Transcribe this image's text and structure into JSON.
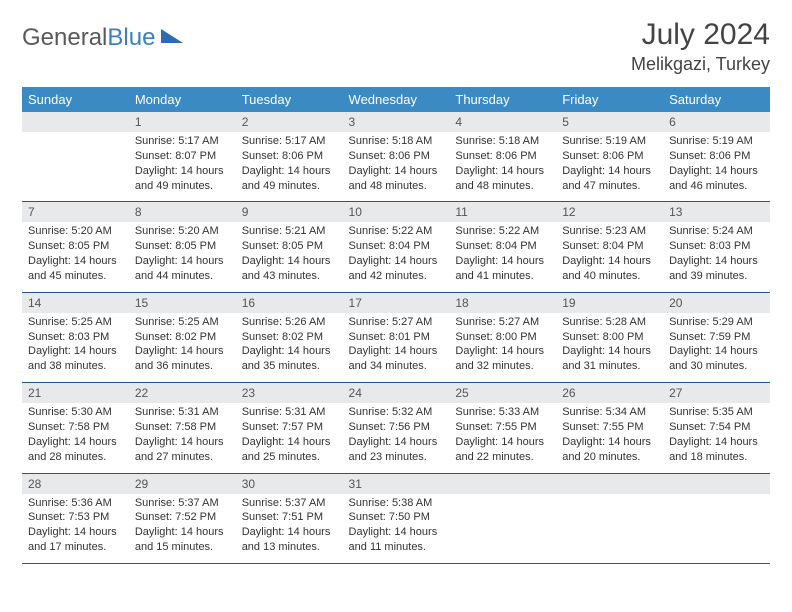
{
  "logo": {
    "part1": "General",
    "part2": "Blue"
  },
  "title": "July 2024",
  "location": "Melikgazi, Turkey",
  "weekdays": [
    "Sunday",
    "Monday",
    "Tuesday",
    "Wednesday",
    "Thursday",
    "Friday",
    "Saturday"
  ],
  "colors": {
    "header_bg": "#3b8ac4",
    "row_border": "#1f5a8a",
    "daynum_bg": "#e8e9ea",
    "text": "#333333"
  },
  "layout": {
    "start_weekday": 1,
    "num_days": 31
  },
  "days": [
    {
      "n": 1,
      "sr": "5:17 AM",
      "ss": "8:07 PM",
      "dl": "14 hours and 49 minutes."
    },
    {
      "n": 2,
      "sr": "5:17 AM",
      "ss": "8:06 PM",
      "dl": "14 hours and 49 minutes."
    },
    {
      "n": 3,
      "sr": "5:18 AM",
      "ss": "8:06 PM",
      "dl": "14 hours and 48 minutes."
    },
    {
      "n": 4,
      "sr": "5:18 AM",
      "ss": "8:06 PM",
      "dl": "14 hours and 48 minutes."
    },
    {
      "n": 5,
      "sr": "5:19 AM",
      "ss": "8:06 PM",
      "dl": "14 hours and 47 minutes."
    },
    {
      "n": 6,
      "sr": "5:19 AM",
      "ss": "8:06 PM",
      "dl": "14 hours and 46 minutes."
    },
    {
      "n": 7,
      "sr": "5:20 AM",
      "ss": "8:05 PM",
      "dl": "14 hours and 45 minutes."
    },
    {
      "n": 8,
      "sr": "5:20 AM",
      "ss": "8:05 PM",
      "dl": "14 hours and 44 minutes."
    },
    {
      "n": 9,
      "sr": "5:21 AM",
      "ss": "8:05 PM",
      "dl": "14 hours and 43 minutes."
    },
    {
      "n": 10,
      "sr": "5:22 AM",
      "ss": "8:04 PM",
      "dl": "14 hours and 42 minutes."
    },
    {
      "n": 11,
      "sr": "5:22 AM",
      "ss": "8:04 PM",
      "dl": "14 hours and 41 minutes."
    },
    {
      "n": 12,
      "sr": "5:23 AM",
      "ss": "8:04 PM",
      "dl": "14 hours and 40 minutes."
    },
    {
      "n": 13,
      "sr": "5:24 AM",
      "ss": "8:03 PM",
      "dl": "14 hours and 39 minutes."
    },
    {
      "n": 14,
      "sr": "5:25 AM",
      "ss": "8:03 PM",
      "dl": "14 hours and 38 minutes."
    },
    {
      "n": 15,
      "sr": "5:25 AM",
      "ss": "8:02 PM",
      "dl": "14 hours and 36 minutes."
    },
    {
      "n": 16,
      "sr": "5:26 AM",
      "ss": "8:02 PM",
      "dl": "14 hours and 35 minutes."
    },
    {
      "n": 17,
      "sr": "5:27 AM",
      "ss": "8:01 PM",
      "dl": "14 hours and 34 minutes."
    },
    {
      "n": 18,
      "sr": "5:27 AM",
      "ss": "8:00 PM",
      "dl": "14 hours and 32 minutes."
    },
    {
      "n": 19,
      "sr": "5:28 AM",
      "ss": "8:00 PM",
      "dl": "14 hours and 31 minutes."
    },
    {
      "n": 20,
      "sr": "5:29 AM",
      "ss": "7:59 PM",
      "dl": "14 hours and 30 minutes."
    },
    {
      "n": 21,
      "sr": "5:30 AM",
      "ss": "7:58 PM",
      "dl": "14 hours and 28 minutes."
    },
    {
      "n": 22,
      "sr": "5:31 AM",
      "ss": "7:58 PM",
      "dl": "14 hours and 27 minutes."
    },
    {
      "n": 23,
      "sr": "5:31 AM",
      "ss": "7:57 PM",
      "dl": "14 hours and 25 minutes."
    },
    {
      "n": 24,
      "sr": "5:32 AM",
      "ss": "7:56 PM",
      "dl": "14 hours and 23 minutes."
    },
    {
      "n": 25,
      "sr": "5:33 AM",
      "ss": "7:55 PM",
      "dl": "14 hours and 22 minutes."
    },
    {
      "n": 26,
      "sr": "5:34 AM",
      "ss": "7:55 PM",
      "dl": "14 hours and 20 minutes."
    },
    {
      "n": 27,
      "sr": "5:35 AM",
      "ss": "7:54 PM",
      "dl": "14 hours and 18 minutes."
    },
    {
      "n": 28,
      "sr": "5:36 AM",
      "ss": "7:53 PM",
      "dl": "14 hours and 17 minutes."
    },
    {
      "n": 29,
      "sr": "5:37 AM",
      "ss": "7:52 PM",
      "dl": "14 hours and 15 minutes."
    },
    {
      "n": 30,
      "sr": "5:37 AM",
      "ss": "7:51 PM",
      "dl": "14 hours and 13 minutes."
    },
    {
      "n": 31,
      "sr": "5:38 AM",
      "ss": "7:50 PM",
      "dl": "14 hours and 11 minutes."
    }
  ],
  "labels": {
    "sunrise": "Sunrise:",
    "sunset": "Sunset:",
    "daylight": "Daylight:"
  }
}
